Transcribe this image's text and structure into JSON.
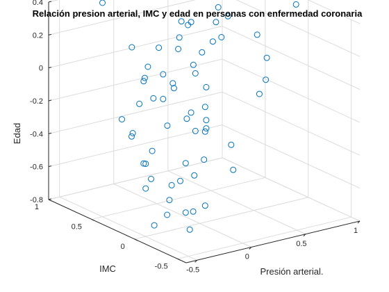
{
  "chart_data": {
    "type": "scatter",
    "title": "Relación presion arterial, IMC y edad en personas con enfermedad coronaria",
    "xlabel": "Presión arterial.",
    "ylabel": "IMC",
    "zlabel": "Edad",
    "x_ticks": [
      "-0.5",
      "0",
      "0.5",
      "1"
    ],
    "y_ticks": [
      "-0.5",
      "0",
      "0.5",
      "1"
    ],
    "z_ticks": [
      "-0.8",
      "-0.6",
      "-0.4",
      "-0.2",
      "0",
      "0.2",
      "0.4"
    ],
    "xlim": [
      -0.6,
      1.0
    ],
    "ylim": [
      -0.6,
      1.0
    ],
    "zlim": [
      -0.8,
      0.4
    ],
    "grid": true,
    "marker": "circle-open",
    "marker_color": "#0072BD",
    "points": [
      [
        -0.5,
        0.5,
        0.5
      ],
      [
        -0.15,
        0.6,
        0.15
      ],
      [
        0.25,
        0.1,
        0.45
      ],
      [
        0.3,
        0.05,
        0.4
      ],
      [
        0.45,
        -0.1,
        0.3
      ],
      [
        0.45,
        -0.2,
        0.05
      ],
      [
        0.42,
        -0.25,
        0.2
      ],
      [
        0.65,
        -0.3,
        0.5
      ],
      [
        0.25,
        -0.05,
        -0.35
      ],
      [
        0.55,
        0.0,
        -0.1
      ],
      [
        0.2,
        0.1,
        0.25
      ],
      [
        0.05,
        0.2,
        0.35
      ],
      [
        0.0,
        0.25,
        0.2
      ],
      [
        0.0,
        0.1,
        0.4
      ],
      [
        -0.05,
        0.15,
        0.4
      ],
      [
        0.05,
        0.3,
        0.25
      ],
      [
        0.1,
        0.2,
        0.1
      ],
      [
        -0.1,
        0.35,
        0.2
      ],
      [
        -0.1,
        0.3,
        0.05
      ],
      [
        -0.15,
        0.45,
        0.0
      ],
      [
        -0.2,
        0.4,
        0.0
      ],
      [
        -0.2,
        0.35,
        0.1
      ],
      [
        0.15,
        0.0,
        0.4
      ],
      [
        0.2,
        0.0,
        0.3
      ],
      [
        0.1,
        0.1,
        0.2
      ],
      [
        0.0,
        0.05,
        0.1
      ],
      [
        -0.05,
        0.25,
        0.0
      ],
      [
        -0.1,
        0.3,
        -0.1
      ],
      [
        0.1,
        0.05,
        0.0
      ],
      [
        -0.15,
        0.35,
        -0.1
      ],
      [
        0.0,
        0.15,
        -0.2
      ],
      [
        -0.1,
        0.25,
        -0.25
      ],
      [
        -0.2,
        0.45,
        -0.15
      ],
      [
        0.05,
        0.0,
        -0.1
      ],
      [
        0.0,
        0.1,
        -0.15
      ],
      [
        0.1,
        0.05,
        -0.2
      ],
      [
        -0.2,
        0.3,
        -0.4
      ],
      [
        0.0,
        0.3,
        -0.05
      ],
      [
        -0.3,
        0.4,
        -0.3
      ],
      [
        0.1,
        0.05,
        -0.25
      ],
      [
        -0.2,
        0.4,
        -0.5
      ],
      [
        -0.25,
        0.25,
        -0.55
      ],
      [
        -0.05,
        0.1,
        -0.45
      ],
      [
        0.0,
        -0.05,
        -0.4
      ],
      [
        0.05,
        0.0,
        -0.25
      ],
      [
        0.0,
        0.05,
        -0.25
      ],
      [
        -0.3,
        0.25,
        -0.6
      ],
      [
        -0.1,
        0.1,
        -0.55
      ],
      [
        -0.05,
        0.0,
        -0.5
      ],
      [
        -0.3,
        0.25,
        -0.45
      ],
      [
        -0.35,
        0.35,
        -0.3
      ],
      [
        -0.4,
        0.4,
        -0.2
      ],
      [
        0.15,
        -0.2,
        -0.45
      ],
      [
        -0.2,
        0.1,
        -0.65
      ],
      [
        -0.1,
        -0.05,
        -0.7
      ],
      [
        -0.3,
        0.15,
        -0.8
      ],
      [
        -0.05,
        0.1,
        -0.75
      ],
      [
        0.05,
        0.0,
        -0.7
      ],
      [
        -0.3,
        0.0,
        -0.7
      ],
      [
        -0.25,
        -0.2,
        -0.75
      ],
      [
        -0.1,
        0.2,
        -0.6
      ]
    ]
  }
}
